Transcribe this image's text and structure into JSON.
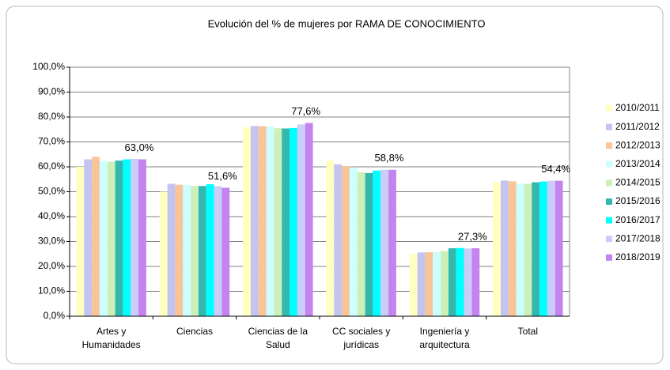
{
  "chart_data": {
    "type": "bar",
    "title": "Evolución del % de mujeres por RAMA DE CONOCIMIENTO",
    "categories": [
      "Artes y Humanidades",
      "Ciencias",
      "Ciencias de la Salud",
      "CC sociales y jurídicas",
      "Ingeniería y arquitectura",
      "Total"
    ],
    "series": [
      {
        "name": "2010/2011",
        "color": "#ffffc0",
        "values": [
          60.0,
          50.0,
          76.0,
          62.5,
          25.0,
          53.8
        ]
      },
      {
        "name": "2011/2012",
        "color": "#c4c4f0",
        "values": [
          63.0,
          53.2,
          76.4,
          61.0,
          25.6,
          54.5
        ]
      },
      {
        "name": "2012/2013",
        "color": "#f8c498",
        "values": [
          64.0,
          52.8,
          76.3,
          60.3,
          25.7,
          54.2
        ]
      },
      {
        "name": "2013/2014",
        "color": "#ccffff",
        "values": [
          62.3,
          52.7,
          76.2,
          59.5,
          25.8,
          53.2
        ]
      },
      {
        "name": "2014/2015",
        "color": "#ccf0b8",
        "values": [
          62.0,
          52.3,
          75.5,
          57.8,
          26.2,
          53.2
        ]
      },
      {
        "name": "2015/2016",
        "color": "#33b8b0",
        "values": [
          62.5,
          52.3,
          75.4,
          57.5,
          27.3,
          53.8
        ]
      },
      {
        "name": "2016/2017",
        "color": "#00ffff",
        "values": [
          63.0,
          53.0,
          75.6,
          58.5,
          27.4,
          54.1
        ]
      },
      {
        "name": "2017/2018",
        "color": "#ccccf8",
        "values": [
          63.2,
          52.2,
          77.0,
          58.8,
          27.2,
          54.4
        ]
      },
      {
        "name": "2018/2019",
        "color": "#c484f0",
        "values": [
          63.0,
          51.6,
          77.6,
          58.8,
          27.3,
          54.4
        ],
        "value_labels": [
          "63,0%",
          "51,6%",
          "77,6%",
          "58,8%",
          "27,3%",
          "54,4%"
        ]
      }
    ],
    "ylim": [
      0,
      100
    ],
    "yticks": [
      {
        "value": 0,
        "label": "0,0%"
      },
      {
        "value": 10,
        "label": "10,0%"
      },
      {
        "value": 20,
        "label": "20,0%"
      },
      {
        "value": 30,
        "label": "30,0%"
      },
      {
        "value": 40,
        "label": "40,0%"
      },
      {
        "value": 50,
        "label": "50,0%"
      },
      {
        "value": 60,
        "label": "60,0%"
      },
      {
        "value": 70,
        "label": "70,0%"
      },
      {
        "value": 80,
        "label": "80,0%"
      },
      {
        "value": 90,
        "label": "90,0%"
      },
      {
        "value": 100,
        "label": "100,0%"
      }
    ],
    "grid": true,
    "legend": "right"
  }
}
